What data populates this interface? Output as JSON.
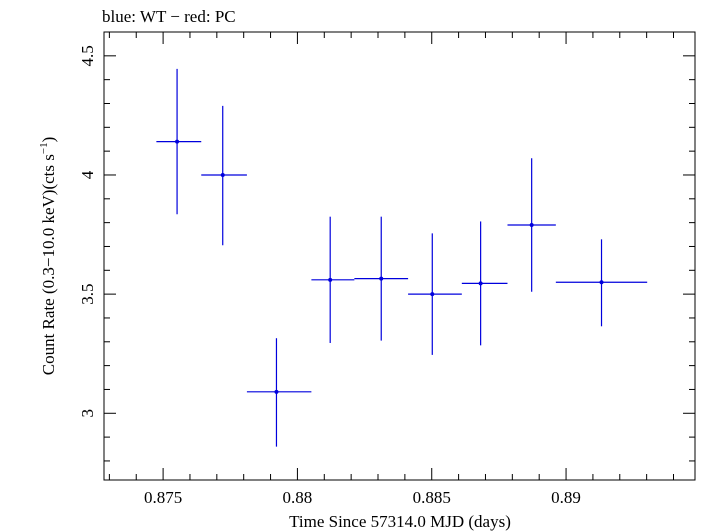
{
  "chart_data": {
    "type": "scatter",
    "title": "blue: WT − red: PC",
    "xlabel": "Time Since 57314.0 MJD (days)",
    "ylabel_main": "Count Rate (0.3−10.0 keV)(cts s",
    "ylabel_sup": "−1",
    "ylabel_close": ")",
    "xlim": [
      0.8728,
      0.8948
    ],
    "ylim": [
      2.72,
      4.6
    ],
    "x_ticks": [
      {
        "value": 0.875,
        "label": "0.875"
      },
      {
        "value": 0.88,
        "label": "0.88"
      },
      {
        "value": 0.885,
        "label": "0.885"
      },
      {
        "value": 0.89,
        "label": "0.89"
      }
    ],
    "y_ticks": [
      {
        "value": 3.0,
        "label": "3"
      },
      {
        "value": 3.5,
        "label": "3.5"
      },
      {
        "value": 4.0,
        "label": "4"
      },
      {
        "value": 4.5,
        "label": "4.5"
      }
    ],
    "x_minor_step": 0.001,
    "y_minor_step": 0.1,
    "grid": false,
    "series": [
      {
        "color": "#0000dd",
        "points": [
          {
            "x": 0.87552,
            "xlo": 0.87475,
            "xhi": 0.87642,
            "y": 4.14,
            "ylo": 3.835,
            "yhi": 4.445
          },
          {
            "x": 0.87722,
            "xlo": 0.87642,
            "xhi": 0.87812,
            "y": 4.0,
            "ylo": 3.705,
            "yhi": 4.29
          },
          {
            "x": 0.87922,
            "xlo": 0.87812,
            "xhi": 0.88052,
            "y": 3.09,
            "ylo": 2.86,
            "yhi": 3.315
          },
          {
            "x": 0.88122,
            "xlo": 0.88052,
            "xhi": 0.88212,
            "y": 3.56,
            "ylo": 3.295,
            "yhi": 3.825
          },
          {
            "x": 0.88312,
            "xlo": 0.88212,
            "xhi": 0.88412,
            "y": 3.565,
            "ylo": 3.305,
            "yhi": 3.825
          },
          {
            "x": 0.88502,
            "xlo": 0.88412,
            "xhi": 0.88612,
            "y": 3.5,
            "ylo": 3.245,
            "yhi": 3.755
          },
          {
            "x": 0.88682,
            "xlo": 0.88612,
            "xhi": 0.88782,
            "y": 3.545,
            "ylo": 3.285,
            "yhi": 3.805
          },
          {
            "x": 0.88872,
            "xlo": 0.88782,
            "xhi": 0.88962,
            "y": 3.79,
            "ylo": 3.51,
            "yhi": 4.07
          },
          {
            "x": 0.89132,
            "xlo": 0.88962,
            "xhi": 0.89302,
            "y": 3.55,
            "ylo": 3.365,
            "yhi": 3.73
          }
        ]
      }
    ]
  }
}
